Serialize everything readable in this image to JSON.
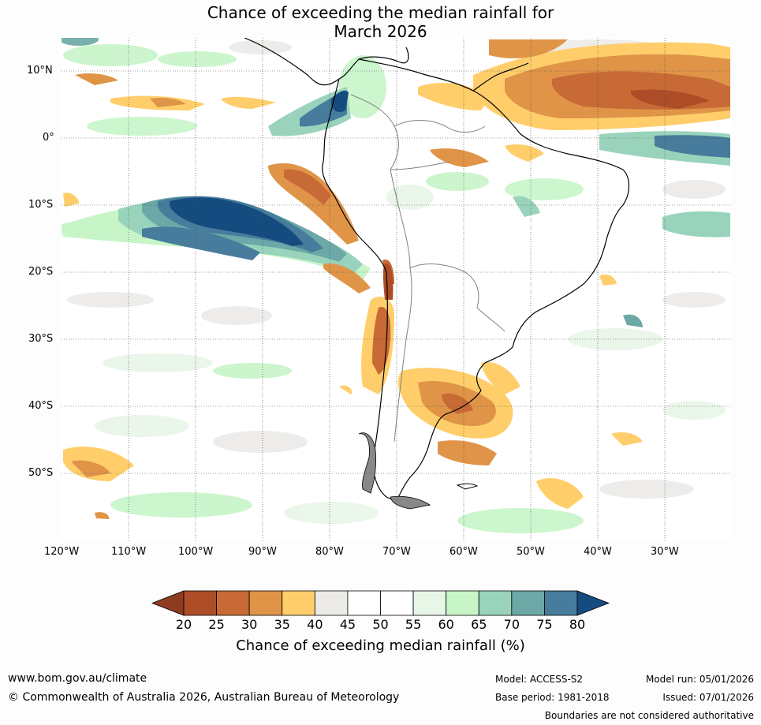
{
  "title_line1": "Chance of exceeding the median rainfall for",
  "title_line2": "March 2026",
  "lat_labels": [
    "10°N",
    "0°",
    "10°S",
    "20°S",
    "30°S",
    "40°S",
    "50°S"
  ],
  "lon_labels": [
    "120°W",
    "110°W",
    "100°W",
    "90°W",
    "80°W",
    "70°W",
    "60°W",
    "50°W",
    "40°W",
    "30°W"
  ],
  "colorbar": {
    "ticks": [
      "20",
      "25",
      "30",
      "35",
      "40",
      "45",
      "50",
      "55",
      "60",
      "65",
      "70",
      "75",
      "80"
    ],
    "colors": [
      "#8e3b1f",
      "#ad4d28",
      "#c86a35",
      "#e09448",
      "#ffce6b",
      "#edebe8",
      "#ffffff",
      "#ffffff",
      "#e8f6e8",
      "#c7f5c8",
      "#99d3bc",
      "#6ba8a6",
      "#477c9c",
      "#154c80"
    ],
    "title": "Chance of exceeding median rainfall (%)"
  },
  "footer": {
    "url": "www.bom.gov.au/climate",
    "copyright": "© Commonwealth of Australia 2026, Australian Bureau of Meteorology",
    "model": "Model: ACCESS-S2",
    "base_period": "Base period: 1981-2018",
    "model_run": "Model run: 05/01/2026",
    "issued": "Issued: 07/01/2026",
    "disclaimer": "Boundaries are not considered authoritative"
  }
}
